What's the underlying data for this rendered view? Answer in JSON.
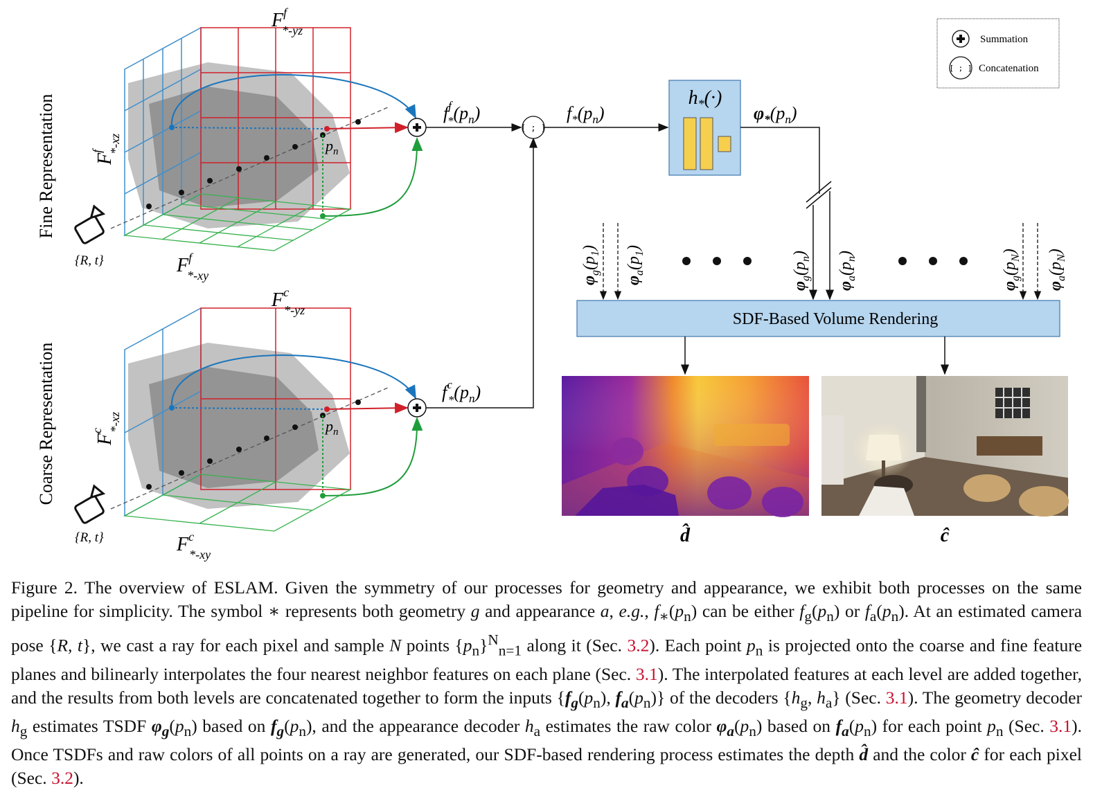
{
  "figure": {
    "legend": {
      "summation": "Summation",
      "concatenation": "Concatenation",
      "concat_symbol": "[ ; ]"
    },
    "labels": {
      "fine_representation": "Fine Representation",
      "coarse_representation": "Coarse Representation",
      "fine_yz": "F*-yz f",
      "fine_xz": "F*-xz f",
      "fine_xy": "F*-xy f",
      "coarse_yz": "F*-yz c",
      "coarse_xz": "F*-xz c",
      "coarse_xy": "F*-xy c",
      "pose_fine": "{R, t}",
      "pose_coarse": "{R, t}",
      "pn": "pn",
      "fine_feature": "f*f(pn)",
      "coarse_feature": "f*c(pn)",
      "concat_feature": "f*(pn)",
      "decoder": "h*(·)",
      "decoder_output": "φ*(pn)",
      "volume_rendering": "SDF-Based Volume Rendering",
      "depth_output": "d̂",
      "color_output": "ĉ",
      "inputs": [
        "φg(p1)",
        "φa(p1)",
        "φg(pn)",
        "φa(pn)",
        "φg(pN)",
        "φa(pN)"
      ]
    }
  },
  "caption": {
    "figure_label": "Figure 2.",
    "refs": [
      "3.2",
      "3.1",
      "3.1",
      "3.1",
      "3.2"
    ]
  },
  "colors": {
    "blue_plane": "#3f8fcb",
    "red_plane": "#d0202a",
    "green_plane": "#37b24d",
    "decoder_box": "#b6d5ee",
    "decoder_bar": "#f7cf4f",
    "render_box": "#b6d5ee"
  }
}
